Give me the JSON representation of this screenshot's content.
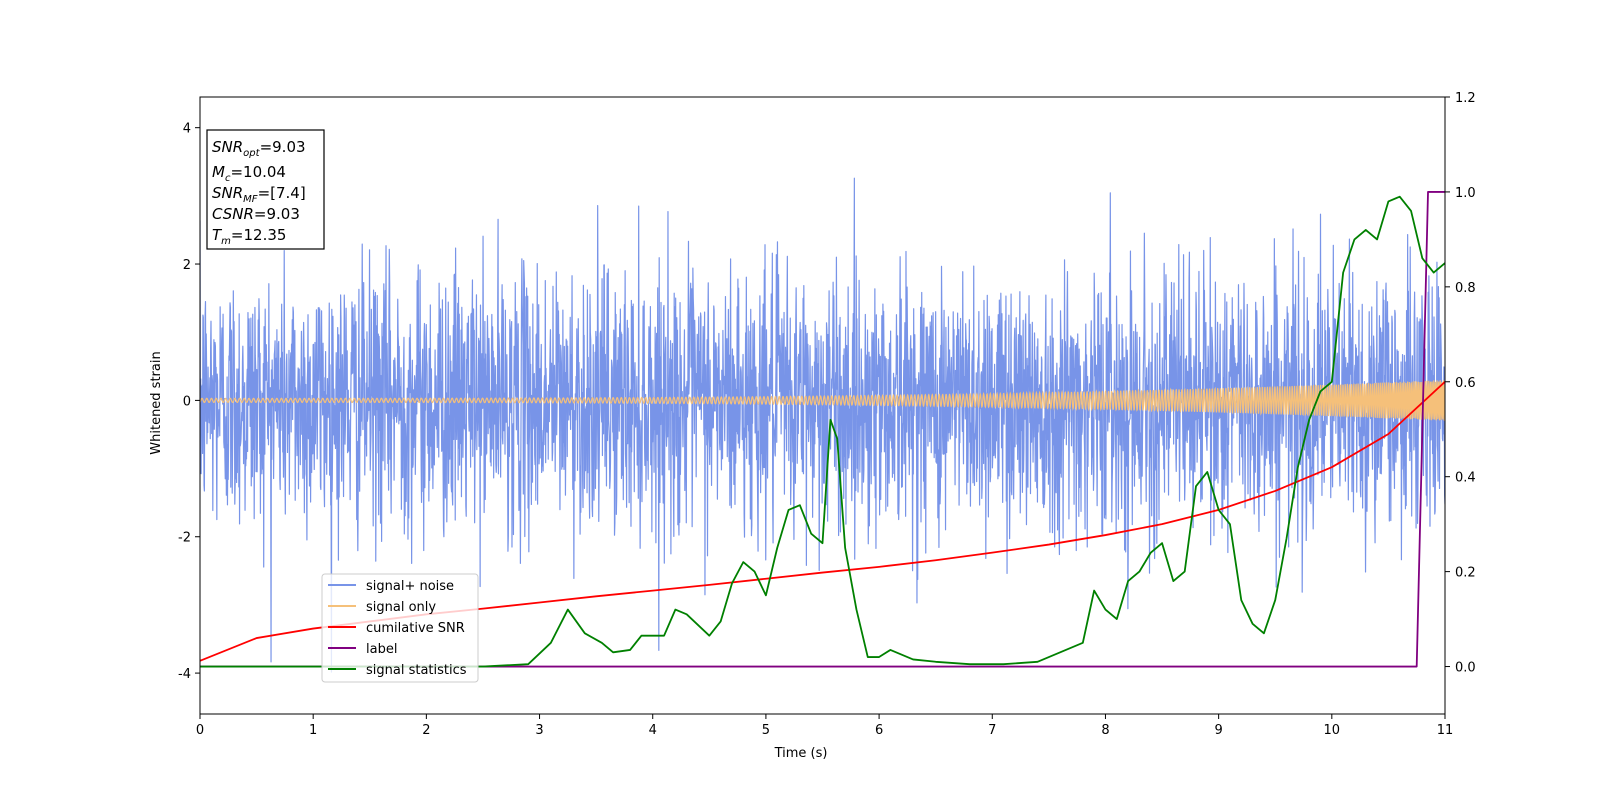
{
  "chart_data": {
    "type": "line",
    "xlabel": "Time (s)",
    "ylabel": "Whitened strain",
    "xlim": [
      0,
      11
    ],
    "ylim_left": [
      -4.6,
      4.45
    ],
    "ylim_right": [
      -0.1,
      1.2
    ],
    "x_ticks": [
      "0",
      "1",
      "2",
      "3",
      "4",
      "5",
      "6",
      "7",
      "8",
      "9",
      "10",
      "11"
    ],
    "y_left_ticks": [
      "4",
      "2",
      "0",
      "-2",
      "-4"
    ],
    "y_right_ticks": [
      "1.2",
      "1.0",
      "0.8",
      "0.6",
      "0.4",
      "0.2",
      "0.0"
    ],
    "info_box": {
      "snr_opt": {
        "base": "SNR",
        "sub": "opt",
        "value": "=9.03"
      },
      "mc": {
        "base": "M",
        "sub": "c",
        "value": "=10.04"
      },
      "snr_mf": {
        "base": "SNR",
        "sub": "MF",
        "value": "=[7.4]"
      },
      "csnr": {
        "base": "CSNR",
        "sub": "",
        "value": "=9.03"
      },
      "tm": {
        "base": "T",
        "sub": "m",
        "value": "=12.35"
      }
    },
    "legend_position": "lower-left",
    "series": [
      {
        "name": "signal+ noise",
        "axis": "left",
        "color": "#7894e8",
        "description": "white noise, std ~0.95, spikes to about +/-3.8",
        "noise_std": 0.95,
        "noise_range": [
          -4.1,
          3.8
        ]
      },
      {
        "name": "signal only",
        "axis": "left",
        "color": "#f5c07a",
        "amplitude_start": 0.03,
        "amplitude_end": 0.3,
        "chirp_end_time": 11
      },
      {
        "name": "cumilative SNR",
        "axis": "right",
        "color": "#ff0000",
        "x": [
          0,
          0.5,
          1,
          1.5,
          2,
          2.5,
          3,
          3.5,
          4,
          4.5,
          5,
          5.5,
          6,
          6.5,
          7,
          7.5,
          8,
          8.5,
          9,
          9.5,
          10,
          10.5,
          11
        ],
        "y": [
          0.012,
          0.06,
          0.08,
          0.095,
          0.11,
          0.122,
          0.135,
          0.148,
          0.16,
          0.172,
          0.185,
          0.198,
          0.21,
          0.224,
          0.24,
          0.257,
          0.277,
          0.3,
          0.33,
          0.37,
          0.42,
          0.49,
          0.6
        ]
      },
      {
        "name": "label",
        "axis": "right",
        "color": "#800080",
        "x": [
          0,
          10.75,
          10.85,
          11
        ],
        "y": [
          0.0,
          0.0,
          1.0,
          1.0
        ]
      },
      {
        "name": "signal statistics",
        "axis": "right",
        "color": "#008000",
        "x": [
          0,
          1,
          2,
          2.5,
          2.9,
          3.1,
          3.25,
          3.4,
          3.55,
          3.65,
          3.8,
          3.9,
          4.1,
          4.2,
          4.3,
          4.5,
          4.6,
          4.7,
          4.8,
          4.9,
          5.0,
          5.1,
          5.2,
          5.3,
          5.4,
          5.5,
          5.57,
          5.63,
          5.7,
          5.8,
          5.9,
          6.0,
          6.1,
          6.3,
          6.5,
          6.8,
          7.1,
          7.4,
          7.6,
          7.8,
          7.9,
          8.0,
          8.1,
          8.2,
          8.3,
          8.4,
          8.5,
          8.6,
          8.7,
          8.8,
          8.9,
          9.0,
          9.1,
          9.2,
          9.3,
          9.4,
          9.5,
          9.6,
          9.7,
          9.8,
          9.9,
          10.0,
          10.1,
          10.2,
          10.3,
          10.4,
          10.5,
          10.6,
          10.7,
          10.8,
          10.9,
          11.0
        ],
        "y": [
          0.0,
          0.0,
          0.0,
          0.0,
          0.005,
          0.05,
          0.12,
          0.07,
          0.05,
          0.03,
          0.035,
          0.065,
          0.065,
          0.12,
          0.11,
          0.065,
          0.095,
          0.175,
          0.22,
          0.2,
          0.15,
          0.25,
          0.33,
          0.34,
          0.28,
          0.26,
          0.52,
          0.48,
          0.25,
          0.12,
          0.02,
          0.02,
          0.035,
          0.015,
          0.01,
          0.005,
          0.005,
          0.01,
          0.03,
          0.05,
          0.16,
          0.12,
          0.1,
          0.18,
          0.2,
          0.24,
          0.26,
          0.18,
          0.2,
          0.38,
          0.41,
          0.33,
          0.3,
          0.14,
          0.09,
          0.07,
          0.14,
          0.27,
          0.42,
          0.52,
          0.58,
          0.6,
          0.83,
          0.9,
          0.92,
          0.9,
          0.98,
          0.99,
          0.96,
          0.86,
          0.83,
          0.85
        ]
      }
    ]
  }
}
